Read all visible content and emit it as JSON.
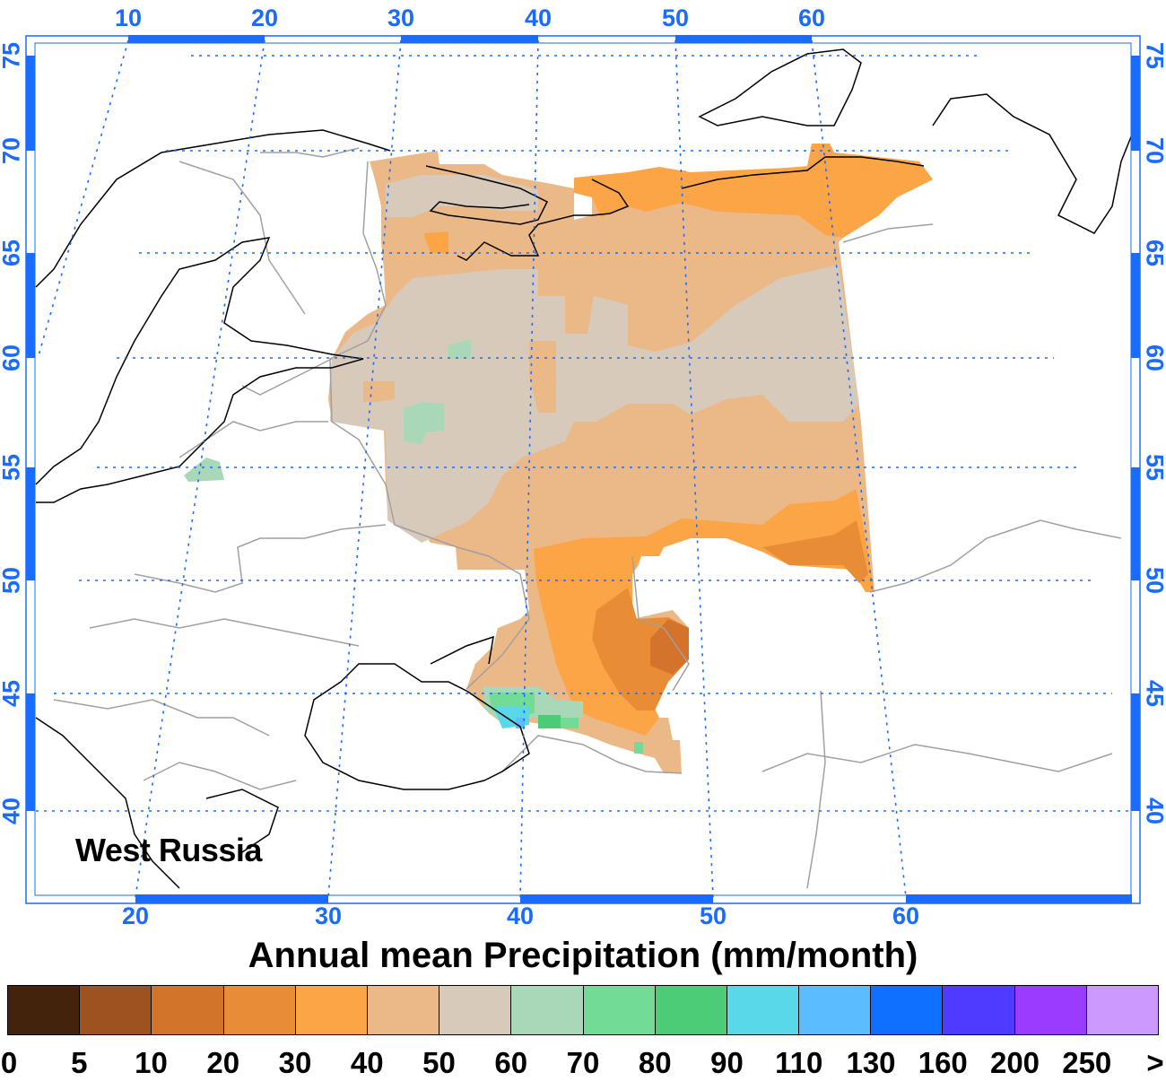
{
  "title": "Annual mean Precipitation (mm/month)",
  "region_label": "West Russia",
  "axes": {
    "top_lon_labels": [
      "10",
      "20",
      "30",
      "40",
      "50",
      "60"
    ],
    "bottom_lon_labels": [
      "20",
      "30",
      "40",
      "50",
      "60"
    ],
    "left_lat_labels": [
      "75",
      "70",
      "65",
      "60",
      "55",
      "50",
      "45",
      "40"
    ],
    "right_lat_labels": [
      "75",
      "70",
      "65",
      "60",
      "55",
      "50",
      "45",
      "40"
    ],
    "tick_color": "#1a6bff"
  },
  "colorbar": {
    "labels": [
      "0",
      "5",
      "10",
      "20",
      "30",
      "40",
      "50",
      "60",
      "70",
      "80",
      "90",
      "110",
      "130",
      "160",
      "200",
      "250",
      ">"
    ],
    "colors": [
      "#44230D",
      "#9E521F",
      "#D3742B",
      "#E88D35",
      "#FCA546",
      "#EBB987",
      "#D8CABB",
      "#A8D8B8",
      "#72DC96",
      "#4CCC77",
      "#58D8E8",
      "#5BBCFF",
      "#0F6FFF",
      "#4F3BFF",
      "#9A3CFF",
      "#CC99FF"
    ]
  },
  "map": {
    "variable": "Annual mean Precipitation",
    "units": "mm/month",
    "dominant_classes": [
      "40-50",
      "50-60",
      "30-40",
      "20-30",
      "10-20"
    ],
    "wettest_area": "Caucasus Black Sea coast (90-130)",
    "driest_area": "Lower Volga / Caspian (10-20)"
  }
}
